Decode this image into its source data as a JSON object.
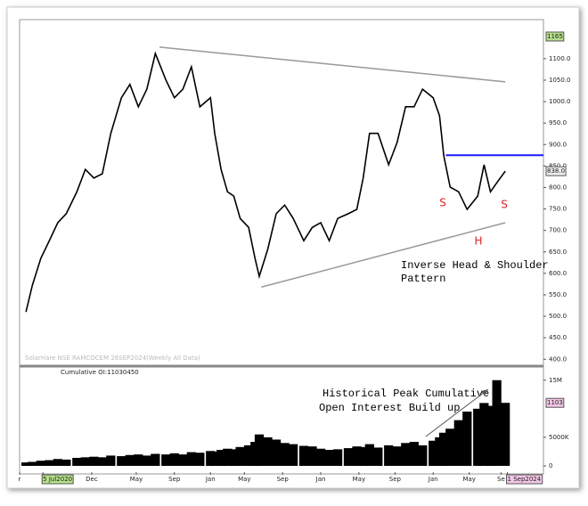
{
  "chart_data": [
    {
      "type": "line",
      "watermark": "SolarHare NSE RAMCOCEM 26SEP2024(Weekly All Data)",
      "x": [
        3,
        6,
        10,
        14,
        18,
        22,
        27,
        31,
        35,
        39,
        43,
        48,
        52,
        56,
        60,
        64,
        69,
        73,
        77,
        81,
        85,
        90,
        92,
        95,
        98,
        101,
        104,
        108,
        111,
        113,
        117,
        121,
        125,
        129,
        134,
        138,
        142,
        146,
        150,
        155,
        159,
        162,
        165,
        169,
        174,
        178,
        182,
        186,
        190,
        195,
        198,
        200,
        203,
        207,
        211,
        216,
        219,
        222,
        225,
        229
      ],
      "values": [
        510,
        572,
        635,
        676,
        718,
        739,
        790,
        842,
        822,
        832,
        926,
        1009,
        1040,
        988,
        1029,
        1112,
        1050,
        1009,
        1029,
        1081,
        988,
        1009,
        926,
        842,
        790,
        780,
        728,
        707,
        635,
        593,
        656,
        739,
        759,
        728,
        676,
        707,
        718,
        676,
        728,
        739,
        749,
        822,
        926,
        926,
        853,
        905,
        988,
        988,
        1029,
        1009,
        967,
        874,
        801,
        790,
        749,
        780,
        853,
        790,
        811,
        838
      ],
      "color": "#000000",
      "xlim": [
        0,
        247
      ],
      "ylim": [
        386,
        1191
      ],
      "yticks": [
        {
          "value": 400,
          "label": "400.0"
        },
        {
          "value": 450,
          "label": "450.0"
        },
        {
          "value": 500,
          "label": "500.0"
        },
        {
          "value": 550,
          "label": "550.0"
        },
        {
          "value": 600,
          "label": "600.0"
        },
        {
          "value": 650,
          "label": "650.0"
        },
        {
          "value": 700,
          "label": "700.0"
        },
        {
          "value": 750,
          "label": "750.0"
        },
        {
          "value": 800,
          "label": "800.0"
        },
        {
          "value": 850,
          "label": "850.0"
        },
        {
          "value": 900,
          "label": "900.0"
        },
        {
          "value": 950,
          "label": "950.0"
        },
        {
          "value": 1000,
          "label": "1000.0"
        },
        {
          "value": 1050,
          "label": "1050.0"
        },
        {
          "value": 1100,
          "label": "1100.0"
        }
      ],
      "marker_label": "1165",
      "last_label": "838.0",
      "resistance": {
        "value": 875,
        "from": 201,
        "color": "#1a1aff"
      },
      "trendlines": [
        {
          "x": [
            66,
            229
          ],
          "values": [
            1127,
            1046
          ]
        },
        {
          "x": [
            114,
            229
          ],
          "values": [
            568,
            718
          ]
        }
      ],
      "annotations": [
        "S",
        "H",
        "S",
        "Inverse Head & Shoulder",
        "Pattern"
      ]
    },
    {
      "type": "bar",
      "label": "Cumulative OI:11030450",
      "x": [
        3,
        6,
        10,
        14,
        18,
        22,
        27,
        31,
        35,
        39,
        43,
        48,
        52,
        56,
        60,
        64,
        69,
        73,
        77,
        81,
        85,
        90,
        92,
        95,
        98,
        101,
        104,
        108,
        111,
        113,
        117,
        121,
        125,
        129,
        134,
        138,
        142,
        146,
        150,
        155,
        159,
        162,
        165,
        169,
        174,
        178,
        182,
        186,
        190,
        195,
        198,
        200,
        203,
        207,
        211,
        216,
        219,
        222,
        225,
        229
      ],
      "values": [
        600000,
        700000,
        900000,
        1000000,
        1200000,
        1100000,
        1400000,
        1500000,
        1600000,
        1500000,
        1800000,
        1700000,
        1900000,
        2000000,
        1800000,
        2100000,
        2000000,
        2200000,
        2000000,
        2400000,
        2300000,
        2600000,
        2500000,
        2800000,
        3000000,
        2900000,
        3300000,
        3600000,
        4200000,
        5500000,
        5000000,
        4600000,
        4000000,
        3800000,
        3500000,
        3400000,
        3000000,
        2800000,
        2900000,
        3100000,
        3400000,
        3300000,
        3800000,
        3200000,
        3600000,
        3400000,
        4000000,
        4200000,
        3600000,
        4400000,
        5000000,
        5800000,
        6500000,
        8000000,
        9500000,
        10000000,
        11000000,
        10500000,
        15000000,
        11030450
      ],
      "color": "#000000",
      "xlim": [
        0,
        247
      ],
      "ylim": [
        -1100000,
        17300000
      ],
      "yticks": [
        0,
        {
          "value": 5000000,
          "label": "5000K"
        },
        {
          "value": 15000000,
          "label": "15M"
        }
      ],
      "last_label": "1103",
      "annotation": [
        "Historical Peak Cumulative",
        "Open Interest Build up"
      ],
      "xticks": [
        {
          "value": 0,
          "label": "r"
        },
        {
          "value": 11,
          "label": "5 Jul2020",
          "box": "#b5e08a"
        },
        {
          "value": 34,
          "label": "Dec"
        },
        {
          "value": 55,
          "label": "May"
        },
        {
          "value": 73,
          "label": "Sep"
        },
        {
          "value": 90,
          "label": "Jan"
        },
        {
          "value": 106,
          "label": "May"
        },
        {
          "value": 124,
          "label": "Sep"
        },
        {
          "value": 142,
          "label": "Jan"
        },
        {
          "value": 160,
          "label": "May"
        },
        {
          "value": 177,
          "label": "Sep"
        },
        {
          "value": 195,
          "label": "Jan"
        },
        {
          "value": 212,
          "label": "May"
        },
        {
          "value": 227,
          "label": "Se"
        },
        {
          "value": 230,
          "label": "1 Sep2024",
          "box": "#f4c6e6"
        }
      ]
    }
  ]
}
